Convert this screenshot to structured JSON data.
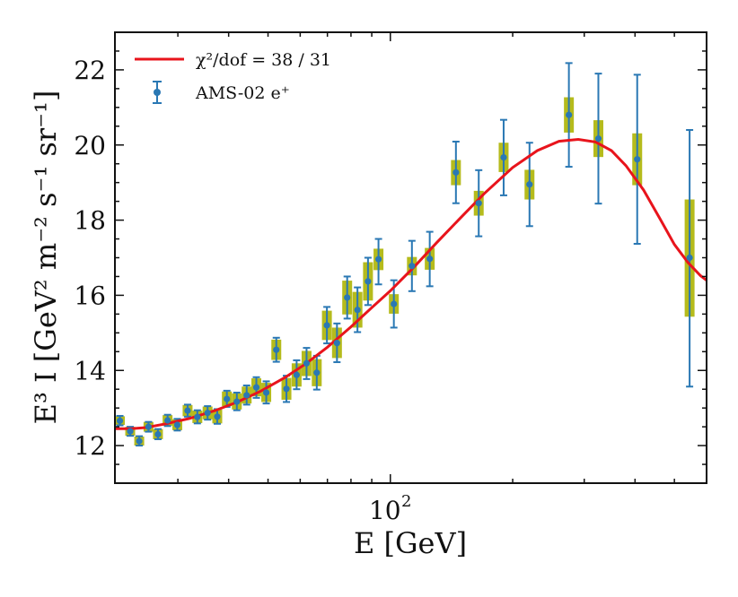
{
  "chart_data": {
    "type": "scatter",
    "title": "",
    "xlabel": "E [GeV]",
    "ylabel": "E³ I [GeV² m⁻² s⁻¹ sr⁻¹]",
    "xscale": "log",
    "xlim": [
      21.0,
      600.0
    ],
    "ylim": [
      11.0,
      23.0
    ],
    "yticks": [
      12,
      14,
      16,
      18,
      20,
      22
    ],
    "xticks_labeled": [
      {
        "value": 100,
        "label": "10",
        "sup": "2"
      }
    ],
    "legend": {
      "location": "top-left",
      "fit_label": "χ²/dof = 38 / 31",
      "data_label": "AMS-02 e⁺"
    },
    "colors": {
      "fit": "#e8141c",
      "points": "#2a78b4",
      "syst_box": "#b5bb1c",
      "axis": "#111111"
    },
    "series": [
      {
        "name": "AMS-02 e+",
        "kind": "points",
        "points": [
          {
            "x": 21.6,
            "y": 12.66,
            "stat": [
              12.54,
              12.79
            ],
            "sys": [
              12.55,
              12.78
            ]
          },
          {
            "x": 22.9,
            "y": 12.38,
            "stat": [
              12.26,
              12.5
            ],
            "sys": [
              12.26,
              12.5
            ]
          },
          {
            "x": 24.1,
            "y": 12.12,
            "stat": [
              12.0,
              12.25
            ],
            "sys": [
              12.0,
              12.24
            ]
          },
          {
            "x": 25.4,
            "y": 12.5,
            "stat": [
              12.37,
              12.63
            ],
            "sys": [
              12.37,
              12.63
            ]
          },
          {
            "x": 26.8,
            "y": 12.3,
            "stat": [
              12.17,
              12.44
            ],
            "sys": [
              12.17,
              12.44
            ]
          },
          {
            "x": 28.3,
            "y": 12.67,
            "stat": [
              12.52,
              12.82
            ],
            "sys": [
              12.53,
              12.81
            ]
          },
          {
            "x": 29.9,
            "y": 12.55,
            "stat": [
              12.4,
              12.71
            ],
            "sys": [
              12.41,
              12.7
            ]
          },
          {
            "x": 31.7,
            "y": 12.93,
            "stat": [
              12.77,
              13.09
            ],
            "sys": [
              12.78,
              13.08
            ]
          },
          {
            "x": 33.5,
            "y": 12.76,
            "stat": [
              12.59,
              12.94
            ],
            "sys": [
              12.6,
              12.93
            ]
          },
          {
            "x": 35.5,
            "y": 12.87,
            "stat": [
              12.69,
              13.05
            ],
            "sys": [
              12.7,
              13.04
            ]
          },
          {
            "x": 37.5,
            "y": 12.77,
            "stat": [
              12.58,
              12.97
            ],
            "sys": [
              12.59,
              12.96
            ]
          },
          {
            "x": 39.6,
            "y": 13.24,
            "stat": [
              13.03,
              13.46
            ],
            "sys": [
              13.05,
              13.44
            ]
          },
          {
            "x": 41.9,
            "y": 13.17,
            "stat": [
              12.94,
              13.41
            ],
            "sys": [
              12.96,
              13.39
            ]
          },
          {
            "x": 44.3,
            "y": 13.34,
            "stat": [
              13.09,
              13.6
            ],
            "sys": [
              13.12,
              13.57
            ]
          },
          {
            "x": 46.8,
            "y": 13.55,
            "stat": [
              13.27,
              13.82
            ],
            "sys": [
              13.31,
              13.79
            ]
          },
          {
            "x": 49.5,
            "y": 13.41,
            "stat": [
              13.12,
              13.71
            ],
            "sys": [
              13.16,
              13.67
            ]
          },
          {
            "x": 52.4,
            "y": 14.55,
            "stat": [
              14.23,
              14.87
            ],
            "sys": [
              14.28,
              14.82
            ]
          },
          {
            "x": 55.5,
            "y": 13.51,
            "stat": [
              13.16,
              13.86
            ],
            "sys": [
              13.22,
              13.8
            ]
          },
          {
            "x": 58.8,
            "y": 13.88,
            "stat": [
              13.5,
              14.27
            ],
            "sys": [
              13.57,
              14.19
            ]
          },
          {
            "x": 62.2,
            "y": 14.19,
            "stat": [
              13.77,
              14.6
            ],
            "sys": [
              13.85,
              14.52
            ]
          },
          {
            "x": 65.9,
            "y": 13.94,
            "stat": [
              13.49,
              14.39
            ],
            "sys": [
              13.58,
              14.3
            ]
          },
          {
            "x": 69.8,
            "y": 15.2,
            "stat": [
              14.72,
              15.69
            ],
            "sys": [
              14.81,
              15.59
            ]
          },
          {
            "x": 73.9,
            "y": 14.73,
            "stat": [
              14.22,
              15.25
            ],
            "sys": [
              14.33,
              15.14
            ]
          },
          {
            "x": 78.3,
            "y": 15.94,
            "stat": [
              15.38,
              16.5
            ],
            "sys": [
              15.49,
              16.39
            ]
          },
          {
            "x": 83.0,
            "y": 15.61,
            "stat": [
              15.02,
              16.21
            ],
            "sys": [
              15.14,
              16.09
            ]
          },
          {
            "x": 88.1,
            "y": 16.37,
            "stat": [
              15.74,
              17.0
            ],
            "sys": [
              15.86,
              16.88
            ]
          },
          {
            "x": 93.5,
            "y": 16.96,
            "stat": [
              16.29,
              17.5
            ],
            "sys": [
              16.67,
              17.24
            ]
          },
          {
            "x": 102.0,
            "y": 15.77,
            "stat": [
              15.14,
              16.4
            ],
            "sys": [
              15.51,
              16.03
            ]
          },
          {
            "x": 113.0,
            "y": 16.78,
            "stat": [
              16.11,
              17.45
            ],
            "sys": [
              16.53,
              17.02
            ]
          },
          {
            "x": 125.0,
            "y": 16.97,
            "stat": [
              16.24,
              17.69
            ],
            "sys": [
              16.68,
              17.26
            ]
          },
          {
            "x": 145.0,
            "y": 19.27,
            "stat": [
              18.45,
              20.09
            ],
            "sys": [
              18.93,
              19.6
            ]
          },
          {
            "x": 165.0,
            "y": 18.45,
            "stat": [
              17.57,
              19.33
            ],
            "sys": [
              18.12,
              18.78
            ]
          },
          {
            "x": 190.0,
            "y": 19.67,
            "stat": [
              18.66,
              20.67
            ],
            "sys": [
              19.28,
              20.06
            ]
          },
          {
            "x": 220.0,
            "y": 18.95,
            "stat": [
              17.84,
              20.06
            ],
            "sys": [
              18.55,
              19.34
            ]
          },
          {
            "x": 275.0,
            "y": 20.8,
            "stat": [
              19.42,
              22.18
            ],
            "sys": [
              20.33,
              21.27
            ]
          },
          {
            "x": 325.0,
            "y": 20.17,
            "stat": [
              18.44,
              21.9
            ],
            "sys": [
              19.68,
              20.66
            ]
          },
          {
            "x": 405.0,
            "y": 19.62,
            "stat": [
              17.37,
              21.87
            ],
            "sys": [
              18.93,
              20.31
            ]
          },
          {
            "x": 545.0,
            "y": 17.0,
            "stat": [
              13.57,
              20.4
            ],
            "sys": [
              15.43,
              18.55
            ]
          }
        ]
      },
      {
        "name": "χ²/dof = 38 / 31",
        "kind": "curve",
        "x": [
          21.0,
          23.0,
          25.0,
          28.0,
          32.0,
          37.0,
          42.0,
          48.0,
          55.0,
          62.0,
          70.0,
          80.0,
          90.0,
          100.0,
          115.0,
          130.0,
          150.0,
          170.0,
          200.0,
          230.0,
          260.0,
          290.0,
          320.0,
          350.0,
          380.0,
          420.0,
          460.0,
          500.0,
          540.0,
          580.0,
          600.0
        ],
        "y": [
          12.45,
          12.45,
          12.48,
          12.58,
          12.72,
          12.93,
          13.16,
          13.45,
          13.81,
          14.18,
          14.62,
          15.16,
          15.67,
          16.12,
          16.78,
          17.4,
          18.1,
          18.7,
          19.4,
          19.85,
          20.1,
          20.15,
          20.08,
          19.85,
          19.45,
          18.8,
          18.05,
          17.35,
          16.87,
          16.52,
          16.4
        ]
      }
    ]
  }
}
